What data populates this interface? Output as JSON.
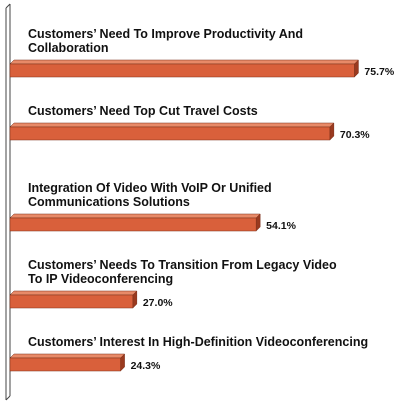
{
  "chart_data": {
    "type": "bar",
    "orientation": "horizontal",
    "categories": [
      [
        "Customers’ Need To Improve Productivity And",
        "Collaboration"
      ],
      [
        "Customers’ Need Top Cut Travel Costs"
      ],
      [
        "Integration Of Video With VoIP Or Unified",
        "Communications Solutions"
      ],
      [
        "Customers’ Needs To Transition From Legacy Video",
        "To IP Videoconferencing"
      ],
      [
        "Customers’ Interest In High-Definition Videoconferencing"
      ]
    ],
    "values": [
      75.7,
      70.3,
      54.1,
      27.0,
      24.3
    ],
    "value_labels": [
      "75.7%",
      "70.3%",
      "54.1%",
      "27.0%",
      "24.3%"
    ],
    "xlim": [
      0,
      100
    ],
    "grid": false,
    "legend": "none",
    "colors": {
      "bar_front": "#d9603b",
      "bar_top": "#e88a68",
      "bar_side": "#9a3a1f",
      "axis": "#444444"
    }
  }
}
